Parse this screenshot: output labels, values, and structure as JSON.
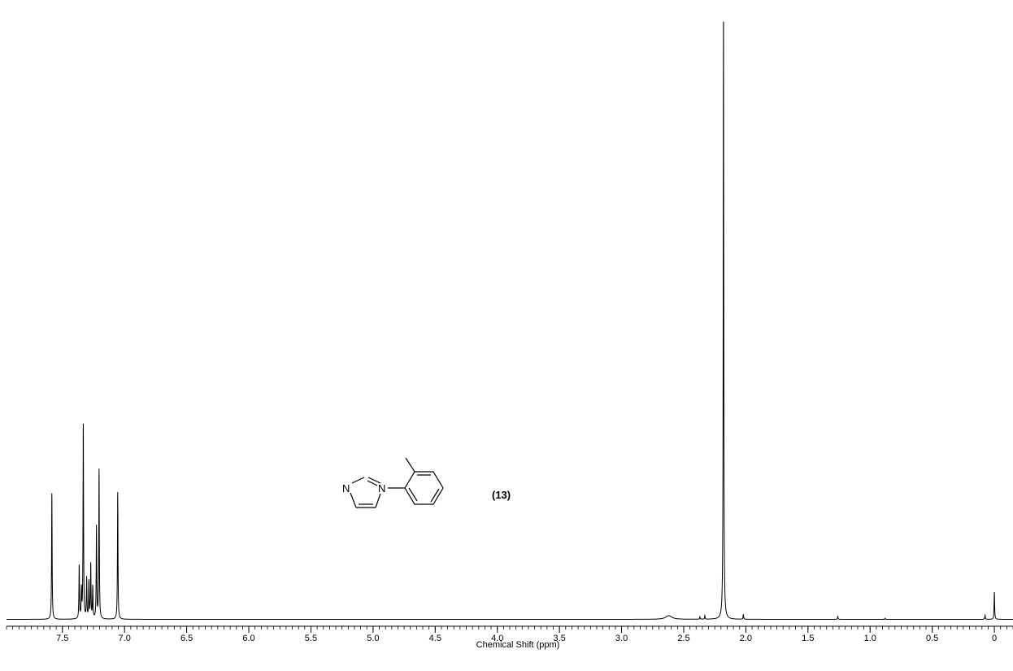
{
  "chart_data": {
    "type": "line",
    "title": "",
    "xlabel": "Chemical Shift (ppm)",
    "ylabel": "",
    "xlim": [
      7.95,
      -0.15
    ],
    "x_reversed": true,
    "ylim": [
      0,
      1
    ],
    "grid": false,
    "tick_labels": [
      "7.5",
      "7.0",
      "6.5",
      "6.0",
      "5.5",
      "5.0",
      "4.5",
      "4.0",
      "3.5",
      "3.0",
      "2.5",
      "2.0",
      "1.5",
      "1.0",
      "0.5",
      "0"
    ],
    "tick_values": [
      7.5,
      7.0,
      6.5,
      6.0,
      5.5,
      5.0,
      4.5,
      4.0,
      3.5,
      3.0,
      2.5,
      2.0,
      1.5,
      1.0,
      0.5,
      0.0
    ],
    "minor_tick_step": 0.05,
    "baseline": 0.002,
    "series": [
      {
        "peaks": [
          {
            "ppm": 7.585,
            "intensity": 0.207
          },
          {
            "ppm": 7.365,
            "intensity": 0.087
          },
          {
            "ppm": 7.347,
            "intensity": 0.046
          },
          {
            "ppm": 7.332,
            "intensity": 0.324
          },
          {
            "ppm": 7.305,
            "intensity": 0.066
          },
          {
            "ppm": 7.287,
            "intensity": 0.06
          },
          {
            "ppm": 7.272,
            "intensity": 0.09
          },
          {
            "ppm": 7.256,
            "intensity": 0.052
          },
          {
            "ppm": 7.226,
            "intensity": 0.15
          },
          {
            "ppm": 7.205,
            "intensity": 0.245
          },
          {
            "ppm": 7.055,
            "intensity": 0.209
          },
          {
            "ppm": 2.62,
            "intensity": 0.006
          },
          {
            "ppm": 2.37,
            "intensity": 0.004
          },
          {
            "ppm": 2.33,
            "intensity": 0.006
          },
          {
            "ppm": 2.18,
            "intensity": 1.0
          },
          {
            "ppm": 2.02,
            "intensity": 0.008
          },
          {
            "ppm": 1.26,
            "intensity": 0.005
          },
          {
            "ppm": 0.88,
            "intensity": 0.002
          },
          {
            "ppm": 0.075,
            "intensity": 0.007
          },
          {
            "ppm": 0.0,
            "intensity": 0.045
          }
        ]
      }
    ],
    "annotations": {
      "compound_number": "(13)",
      "structure_atoms": [
        "N",
        "N"
      ]
    }
  }
}
